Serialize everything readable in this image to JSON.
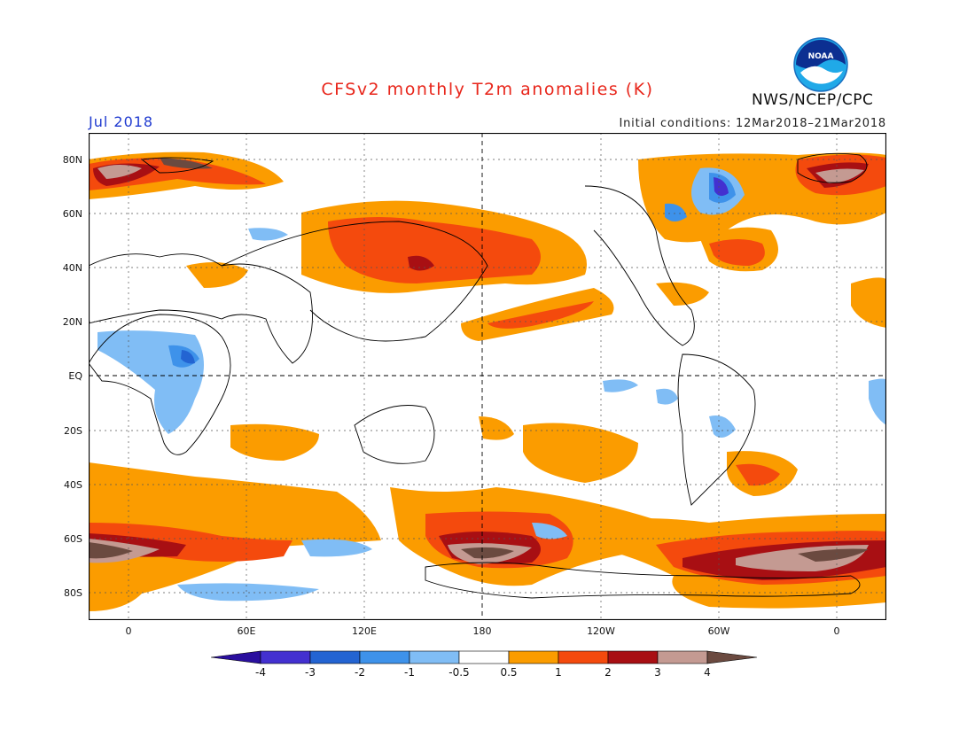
{
  "title": "CFSv2 monthly T2m anomalies (K)",
  "month": "Jul 2018",
  "initial_conditions": "Initial conditions: 12Mar2018–21Mar2018",
  "agency": "NWS/NCEP/CPC",
  "logo_text": "NOAA",
  "lat_labels": [
    "80N",
    "60N",
    "40N",
    "20N",
    "EQ",
    "20S",
    "40S",
    "60S",
    "80S"
  ],
  "lon_labels": [
    "0",
    "60E",
    "120E",
    "180",
    "120W",
    "60W",
    "0"
  ],
  "colorbar": {
    "labels": [
      "-4",
      "-3",
      "-2",
      "-1",
      "-0.5",
      "0.5",
      "1",
      "2",
      "3",
      "4"
    ],
    "colors": [
      "#2a0f9e",
      "#4330d0",
      "#2364d2",
      "#3e92ea",
      "#80bdf5",
      "#ffffff",
      "#fb9c00",
      "#f44a0d",
      "#a80f13",
      "#c49a92",
      "#6b4a40"
    ]
  }
}
